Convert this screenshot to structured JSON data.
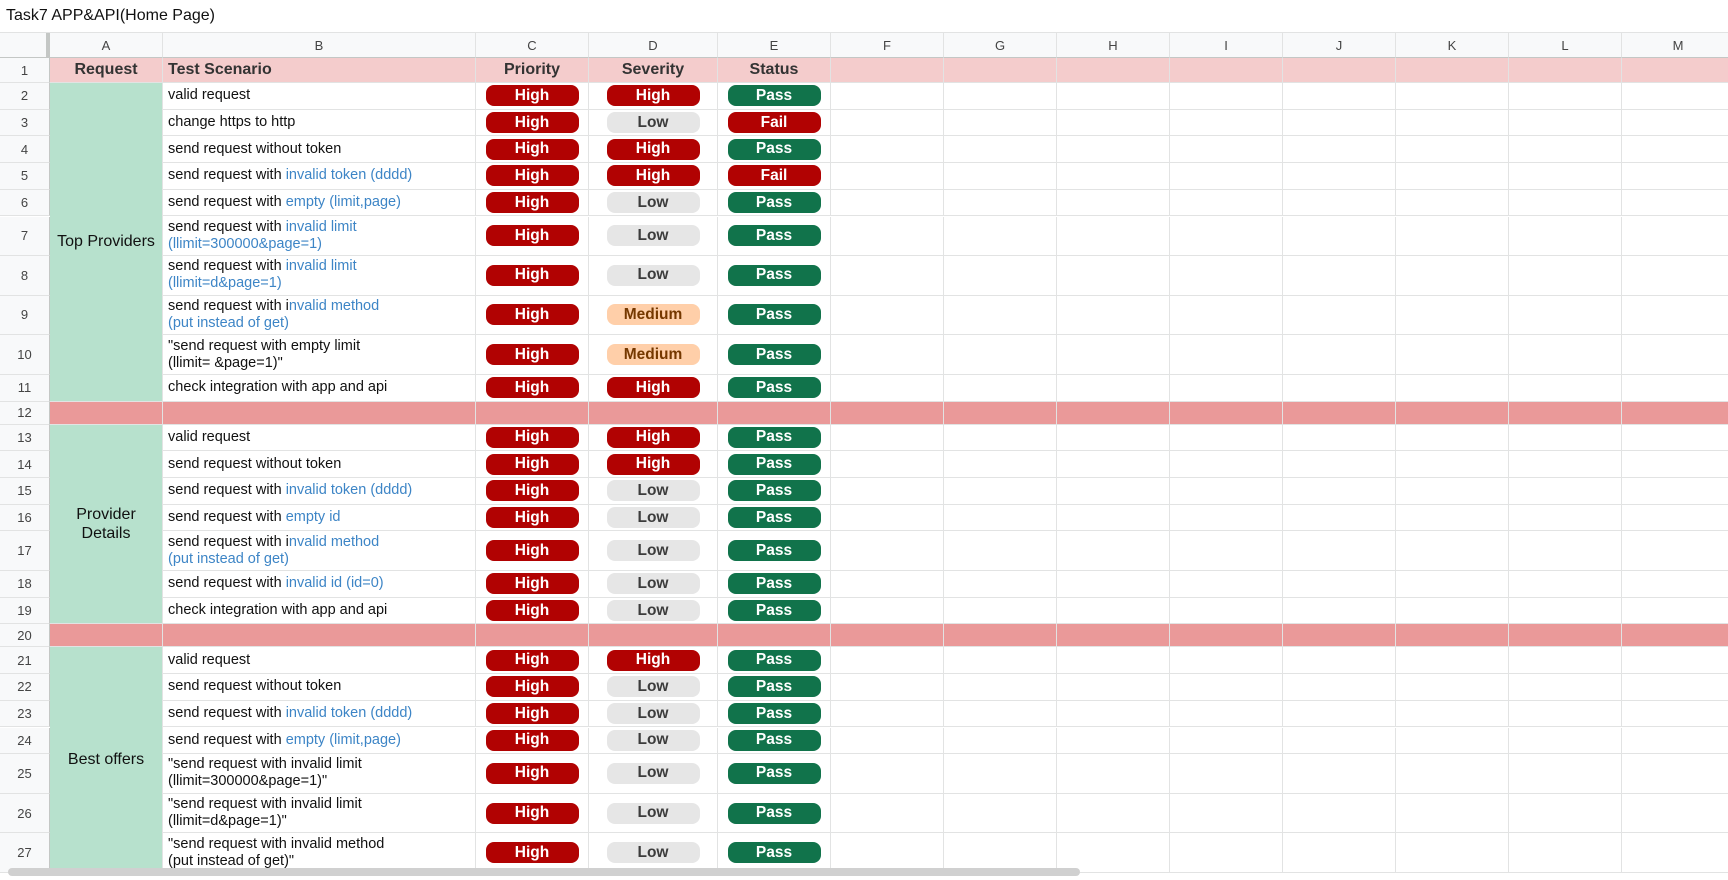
{
  "title": "Task7 APP&API(Home Page)",
  "columns": [
    "A",
    "B",
    "C",
    "D",
    "E",
    "F",
    "G",
    "H",
    "I",
    "J",
    "K",
    "L",
    "M"
  ],
  "header": {
    "row": 1,
    "cells": [
      "Request",
      "Test Scenario",
      "Priority",
      "Severity",
      "Status"
    ]
  },
  "badge_colors": {
    "High": {
      "bg": "#b10202",
      "fg": "#ffffff"
    },
    "Low": {
      "bg": "#e6e6e6",
      "fg": "#3c3c3c"
    },
    "Medium": {
      "bg": "#ffcfa9",
      "fg": "#753800"
    },
    "Pass": {
      "bg": "#11734b",
      "fg": "#ffffff"
    },
    "Fail": {
      "bg": "#b10202",
      "fg": "#ffffff"
    }
  },
  "highlight_color": "#3d85c6",
  "groups": [
    {
      "request": "Top Providers",
      "separator_row": 12,
      "rows": [
        {
          "row": 2,
          "scenario": [
            "valid request"
          ],
          "priority": "High",
          "severity": "High",
          "status": "Pass"
        },
        {
          "row": 3,
          "scenario": [
            "change https to http"
          ],
          "priority": "High",
          "severity": "Low",
          "status": "Fail"
        },
        {
          "row": 4,
          "scenario": [
            "send request without token"
          ],
          "priority": "High",
          "severity": "High",
          "status": "Pass"
        },
        {
          "row": 5,
          "scenario": [
            "send request with ",
            "invalid token (dddd)"
          ],
          "priority": "High",
          "severity": "High",
          "status": "Fail"
        },
        {
          "row": 6,
          "scenario": [
            "send request with ",
            "empty (limit,page)"
          ],
          "priority": "High",
          "severity": "Low",
          "status": "Pass"
        },
        {
          "row": 7,
          "scenario": [
            "send request with ",
            "invalid limit\n(llimit=300000&page=1)"
          ],
          "priority": "High",
          "severity": "Low",
          "status": "Pass"
        },
        {
          "row": 8,
          "scenario": [
            "send request with ",
            "invalid limit\n(llimit=d&page=1)"
          ],
          "priority": "High",
          "severity": "Low",
          "status": "Pass"
        },
        {
          "row": 9,
          "scenario": [
            "send request with i",
            "nvalid method\n(put instead of get)"
          ],
          "priority": "High",
          "severity": "Medium",
          "status": "Pass"
        },
        {
          "row": 10,
          "scenario": [
            "\"send request with empty limit\n(llimit= &page=1)\""
          ],
          "priority": "High",
          "severity": "Medium",
          "status": "Pass"
        },
        {
          "row": 11,
          "scenario": [
            "check integration with app and api"
          ],
          "priority": "High",
          "severity": "High",
          "status": "Pass"
        }
      ]
    },
    {
      "request": "Provider\nDetails",
      "separator_row": 20,
      "rows": [
        {
          "row": 13,
          "scenario": [
            "valid request"
          ],
          "priority": "High",
          "severity": "High",
          "status": "Pass"
        },
        {
          "row": 14,
          "scenario": [
            "send request without token"
          ],
          "priority": "High",
          "severity": "High",
          "status": "Pass"
        },
        {
          "row": 15,
          "scenario": [
            "send request with ",
            "invalid token (dddd)"
          ],
          "priority": "High",
          "severity": "Low",
          "status": "Pass"
        },
        {
          "row": 16,
          "scenario": [
            "send request with ",
            "empty id"
          ],
          "priority": "High",
          "severity": "Low",
          "status": "Pass"
        },
        {
          "row": 17,
          "scenario": [
            "send request with i",
            "nvalid method\n(put instead of get)"
          ],
          "priority": "High",
          "severity": "Low",
          "status": "Pass"
        },
        {
          "row": 18,
          "scenario": [
            "send request with ",
            "invalid id (id=0)"
          ],
          "priority": "High",
          "severity": "Low",
          "status": "Pass"
        },
        {
          "row": 19,
          "scenario": [
            "check integration with app and api"
          ],
          "priority": "High",
          "severity": "Low",
          "status": "Pass"
        }
      ]
    },
    {
      "request": "Best offers",
      "rows": [
        {
          "row": 21,
          "scenario": [
            "valid request"
          ],
          "priority": "High",
          "severity": "High",
          "status": "Pass"
        },
        {
          "row": 22,
          "scenario": [
            "send request without token"
          ],
          "priority": "High",
          "severity": "Low",
          "status": "Pass"
        },
        {
          "row": 23,
          "scenario": [
            "send request with ",
            "invalid token (dddd)"
          ],
          "priority": "High",
          "severity": "Low",
          "status": "Pass"
        },
        {
          "row": 24,
          "scenario": [
            "send request with ",
            "empty (limit,page)"
          ],
          "priority": "High",
          "severity": "Low",
          "status": "Pass"
        },
        {
          "row": 25,
          "scenario": [
            "\"send request with invalid limit\n(llimit=300000&page=1)\""
          ],
          "priority": "High",
          "severity": "Low",
          "status": "Pass"
        },
        {
          "row": 26,
          "scenario": [
            "\"send request with invalid limit\n(llimit=d&page=1)\""
          ],
          "priority": "High",
          "severity": "Low",
          "status": "Pass"
        },
        {
          "row": 27,
          "scenario": [
            "\"send request with invalid method\n(put instead of get)\""
          ],
          "priority": "High",
          "severity": "Low",
          "status": "Pass"
        }
      ]
    }
  ]
}
